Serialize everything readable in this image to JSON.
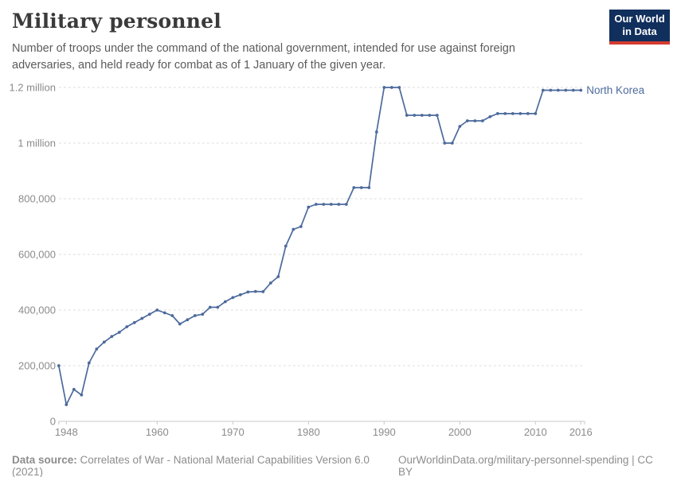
{
  "header": {
    "title": "Military personnel",
    "subtitle": "Number of troops under the command of the national government, intended for use against foreign adversaries, and held ready for combat as of 1 January of the given year.",
    "logo": {
      "line1": "Our World",
      "line2": "in Data",
      "bg_color": "#112f5c",
      "stripe_color": "#d43c31"
    }
  },
  "chart_data": {
    "type": "line",
    "title": "Military personnel",
    "entity": "North Korea",
    "line_color": "#4c6a9c",
    "grid_color": "#dddddd",
    "axis_color": "#c8c8c8",
    "tick_label_color": "#8b8b8b",
    "xlim": [
      1947,
      2016
    ],
    "ylim": [
      0,
      1200000
    ],
    "grid": "horizontal dashed",
    "legend_position": "end-of-line label",
    "x": [
      1947,
      1948,
      1949,
      1950,
      1951,
      1952,
      1953,
      1954,
      1955,
      1956,
      1957,
      1958,
      1959,
      1960,
      1961,
      1962,
      1963,
      1964,
      1965,
      1966,
      1967,
      1968,
      1969,
      1970,
      1971,
      1972,
      1973,
      1974,
      1975,
      1976,
      1977,
      1978,
      1979,
      1980,
      1981,
      1982,
      1983,
      1984,
      1985,
      1986,
      1987,
      1988,
      1989,
      1990,
      1991,
      1992,
      1993,
      1994,
      1995,
      1996,
      1997,
      1998,
      1999,
      2000,
      2001,
      2002,
      2003,
      2004,
      2005,
      2006,
      2007,
      2008,
      2009,
      2010,
      2011,
      2012,
      2013,
      2014,
      2015,
      2016
    ],
    "values": [
      200000,
      60000,
      115000,
      95000,
      210000,
      260000,
      285000,
      305000,
      320000,
      340000,
      355000,
      370000,
      385000,
      400000,
      390000,
      380000,
      350000,
      365000,
      380000,
      385000,
      410000,
      410000,
      430000,
      445000,
      455000,
      465000,
      467000,
      466000,
      497000,
      520000,
      630000,
      690000,
      700000,
      770000,
      780000,
      780000,
      780000,
      780000,
      780000,
      840000,
      840000,
      840000,
      1040000,
      1200000,
      1200000,
      1200000,
      1100000,
      1100000,
      1100000,
      1100000,
      1100000,
      1000000,
      1000000,
      1060000,
      1080000,
      1080000,
      1080000,
      1095000,
      1106000,
      1106000,
      1106000,
      1106000,
      1106000,
      1106000,
      1190000,
      1190000,
      1190000,
      1190000,
      1190000,
      1190000
    ],
    "yticks": [
      {
        "value": 0,
        "label": "0"
      },
      {
        "value": 200000,
        "label": "200,000"
      },
      {
        "value": 400000,
        "label": "400,000"
      },
      {
        "value": 600000,
        "label": "600,000"
      },
      {
        "value": 800000,
        "label": "800,000"
      },
      {
        "value": 1000000,
        "label": "1 million"
      },
      {
        "value": 1200000,
        "label": "1.2 million"
      }
    ],
    "xticks": [
      1948,
      1960,
      1970,
      1980,
      1990,
      2000,
      2010,
      2016
    ]
  },
  "footer": {
    "datasource_label": "Data source:",
    "datasource_value": " Correlates of War - National Material Capabilities Version 6.0 (2021)",
    "link": "OurWorldinData.org/military-personnel-spending | CC BY"
  }
}
